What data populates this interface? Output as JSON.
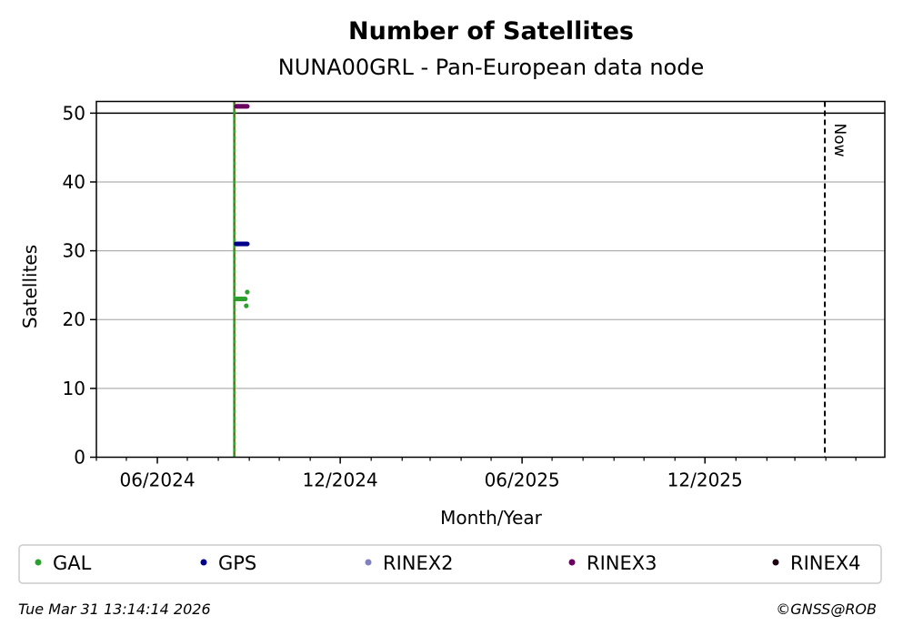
{
  "chart_data": {
    "type": "scatter",
    "title": "Number of Satellites",
    "subtitle": "NUNA00GRL - Pan-European data node",
    "xlabel": "Month/Year",
    "ylabel": "Satellites",
    "ylim": [
      0,
      51.7
    ],
    "xlim": [
      "2024-04-01",
      "2026-05-30"
    ],
    "y_ticks": [
      0,
      10,
      20,
      30,
      40,
      50
    ],
    "x_ticks": [
      {
        "date": "2024-06-01",
        "label": "06/2024"
      },
      {
        "date": "2024-12-01",
        "label": "12/2024"
      },
      {
        "date": "2025-06-01",
        "label": "06/2025"
      },
      {
        "date": "2025-12-01",
        "label": "12/2025"
      }
    ],
    "minor_x_ticks": [
      "2024-04-01",
      "2024-05-01",
      "2024-07-01",
      "2024-08-01",
      "2024-09-01",
      "2024-10-01",
      "2024-11-01",
      "2025-01-01",
      "2025-02-01",
      "2025-03-01",
      "2025-04-01",
      "2025-05-01",
      "2025-07-01",
      "2025-08-01",
      "2025-09-01",
      "2025-10-01",
      "2025-11-01",
      "2026-01-01",
      "2026-02-01",
      "2026-03-01",
      "2026-04-01",
      "2026-05-01"
    ],
    "grid": "horizontal",
    "reference_line_y": 50,
    "event_line_date": "2024-08-17",
    "now_line": {
      "date": "2026-03-31",
      "label": "Now"
    },
    "series": [
      {
        "name": "GAL",
        "color": "#2ca02c",
        "points": [
          {
            "x": "2024-08-19",
            "y": 23
          },
          {
            "x": "2024-08-20",
            "y": 23
          },
          {
            "x": "2024-08-21",
            "y": 23
          },
          {
            "x": "2024-08-22",
            "y": 23
          },
          {
            "x": "2024-08-23",
            "y": 23
          },
          {
            "x": "2024-08-24",
            "y": 23
          },
          {
            "x": "2024-08-25",
            "y": 23
          },
          {
            "x": "2024-08-26",
            "y": 23
          },
          {
            "x": "2024-08-27",
            "y": 23
          },
          {
            "x": "2024-08-28",
            "y": 23
          },
          {
            "x": "2024-08-29",
            "y": 22
          },
          {
            "x": "2024-08-30",
            "y": 24
          }
        ]
      },
      {
        "name": "GPS",
        "color": "#00008b",
        "points": [
          {
            "x": "2024-08-19",
            "y": 31
          },
          {
            "x": "2024-08-20",
            "y": 31
          },
          {
            "x": "2024-08-21",
            "y": 31
          },
          {
            "x": "2024-08-22",
            "y": 31
          },
          {
            "x": "2024-08-23",
            "y": 31
          },
          {
            "x": "2024-08-24",
            "y": 31
          },
          {
            "x": "2024-08-25",
            "y": 31
          },
          {
            "x": "2024-08-26",
            "y": 31
          },
          {
            "x": "2024-08-27",
            "y": 31
          },
          {
            "x": "2024-08-28",
            "y": 31
          },
          {
            "x": "2024-08-29",
            "y": 31
          },
          {
            "x": "2024-08-30",
            "y": 31
          }
        ]
      },
      {
        "name": "RINEX2",
        "color": "#8080c0",
        "points": []
      },
      {
        "name": "RINEX3",
        "color": "#6a0060",
        "points": [
          {
            "x": "2024-08-19",
            "y": 51
          },
          {
            "x": "2024-08-20",
            "y": 51
          },
          {
            "x": "2024-08-21",
            "y": 51
          },
          {
            "x": "2024-08-22",
            "y": 51
          },
          {
            "x": "2024-08-23",
            "y": 51
          },
          {
            "x": "2024-08-24",
            "y": 51
          },
          {
            "x": "2024-08-25",
            "y": 51
          },
          {
            "x": "2024-08-26",
            "y": 51
          },
          {
            "x": "2024-08-27",
            "y": 51
          },
          {
            "x": "2024-08-28",
            "y": 51
          },
          {
            "x": "2024-08-29",
            "y": 51
          },
          {
            "x": "2024-08-30",
            "y": 51
          }
        ]
      },
      {
        "name": "RINEX4",
        "color": "#1a0010",
        "points": []
      }
    ],
    "legend": "bottom"
  },
  "footer": {
    "timestamp": "Tue Mar 31 13:14:14 2026",
    "credit": "©GNSS@ROB"
  }
}
